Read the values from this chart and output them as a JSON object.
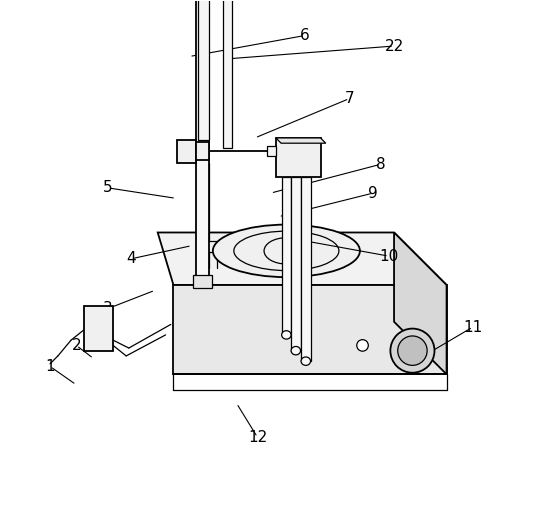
{
  "bg_color": "#ffffff",
  "line_color": "#000000",
  "label_color": "#000000",
  "fontsize": 11,
  "labels": {
    "1": [
      0.065,
      0.305,
      0.115,
      0.27
    ],
    "2": [
      0.115,
      0.345,
      0.148,
      0.32
    ],
    "3": [
      0.175,
      0.415,
      0.265,
      0.45
    ],
    "4": [
      0.22,
      0.51,
      0.335,
      0.535
    ],
    "5": [
      0.175,
      0.645,
      0.305,
      0.625
    ],
    "6": [
      0.55,
      0.935,
      0.33,
      0.895
    ],
    "22": [
      0.72,
      0.915,
      0.395,
      0.89
    ],
    "7": [
      0.635,
      0.815,
      0.455,
      0.74
    ],
    "8": [
      0.695,
      0.69,
      0.485,
      0.635
    ],
    "9": [
      0.68,
      0.635,
      0.5,
      0.59
    ],
    "10": [
      0.71,
      0.515,
      0.545,
      0.545
    ],
    "11": [
      0.87,
      0.38,
      0.785,
      0.33
    ],
    "12": [
      0.46,
      0.17,
      0.42,
      0.235
    ]
  }
}
